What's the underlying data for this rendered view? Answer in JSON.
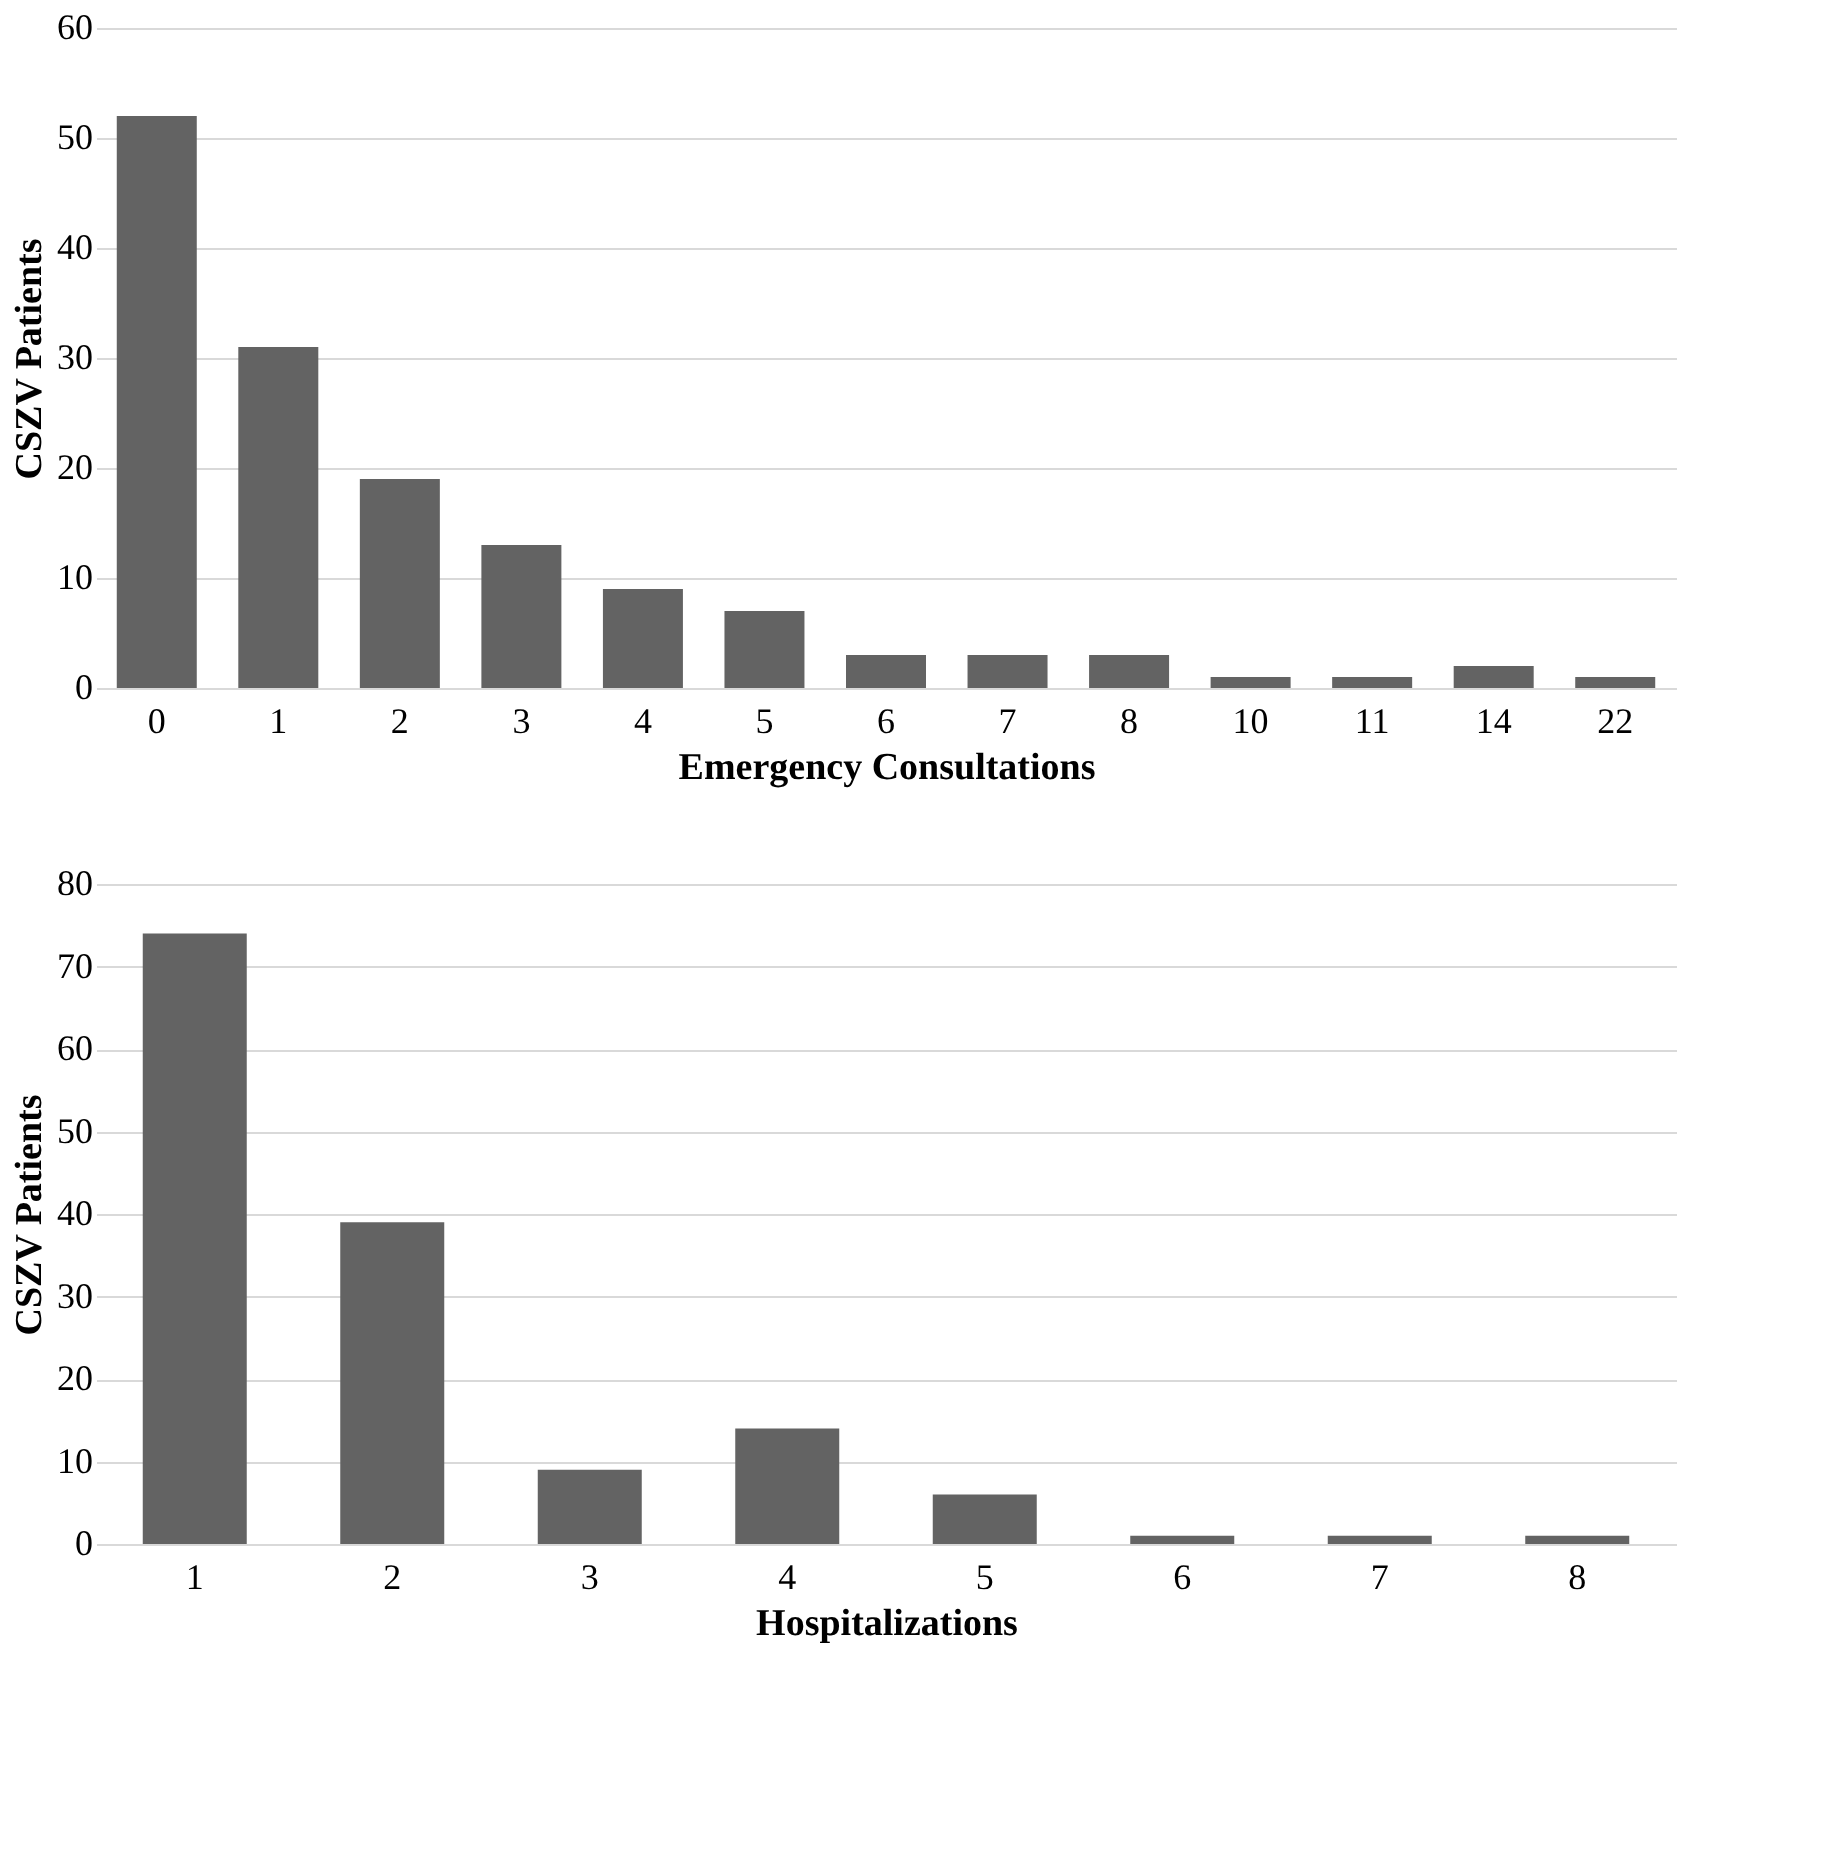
{
  "chart_data": [
    {
      "type": "bar",
      "xlabel": "Emergency Consultations",
      "ylabel": "CSZV Patients",
      "categories": [
        "0",
        "1",
        "2",
        "3",
        "4",
        "5",
        "6",
        "7",
        "8",
        "10",
        "11",
        "14",
        "22"
      ],
      "values": [
        52,
        31,
        19,
        13,
        9,
        7,
        3,
        3,
        3,
        1,
        1,
        2,
        1
      ],
      "color": "#636363",
      "ylim": [
        0,
        60
      ],
      "yticks": [
        0,
        10,
        20,
        30,
        40,
        50,
        60
      ],
      "grid": "y"
    },
    {
      "type": "bar",
      "xlabel": "Hospitalizations",
      "ylabel": "CSZV Patients",
      "categories": [
        "1",
        "2",
        "3",
        "4",
        "5",
        "6",
        "7",
        "8"
      ],
      "values": [
        74,
        39,
        9,
        14,
        6,
        1,
        1,
        1
      ],
      "color": "#636363",
      "ylim": [
        0,
        80
      ],
      "yticks": [
        0,
        10,
        20,
        30,
        40,
        50,
        60,
        70,
        80
      ],
      "grid": "y"
    }
  ]
}
